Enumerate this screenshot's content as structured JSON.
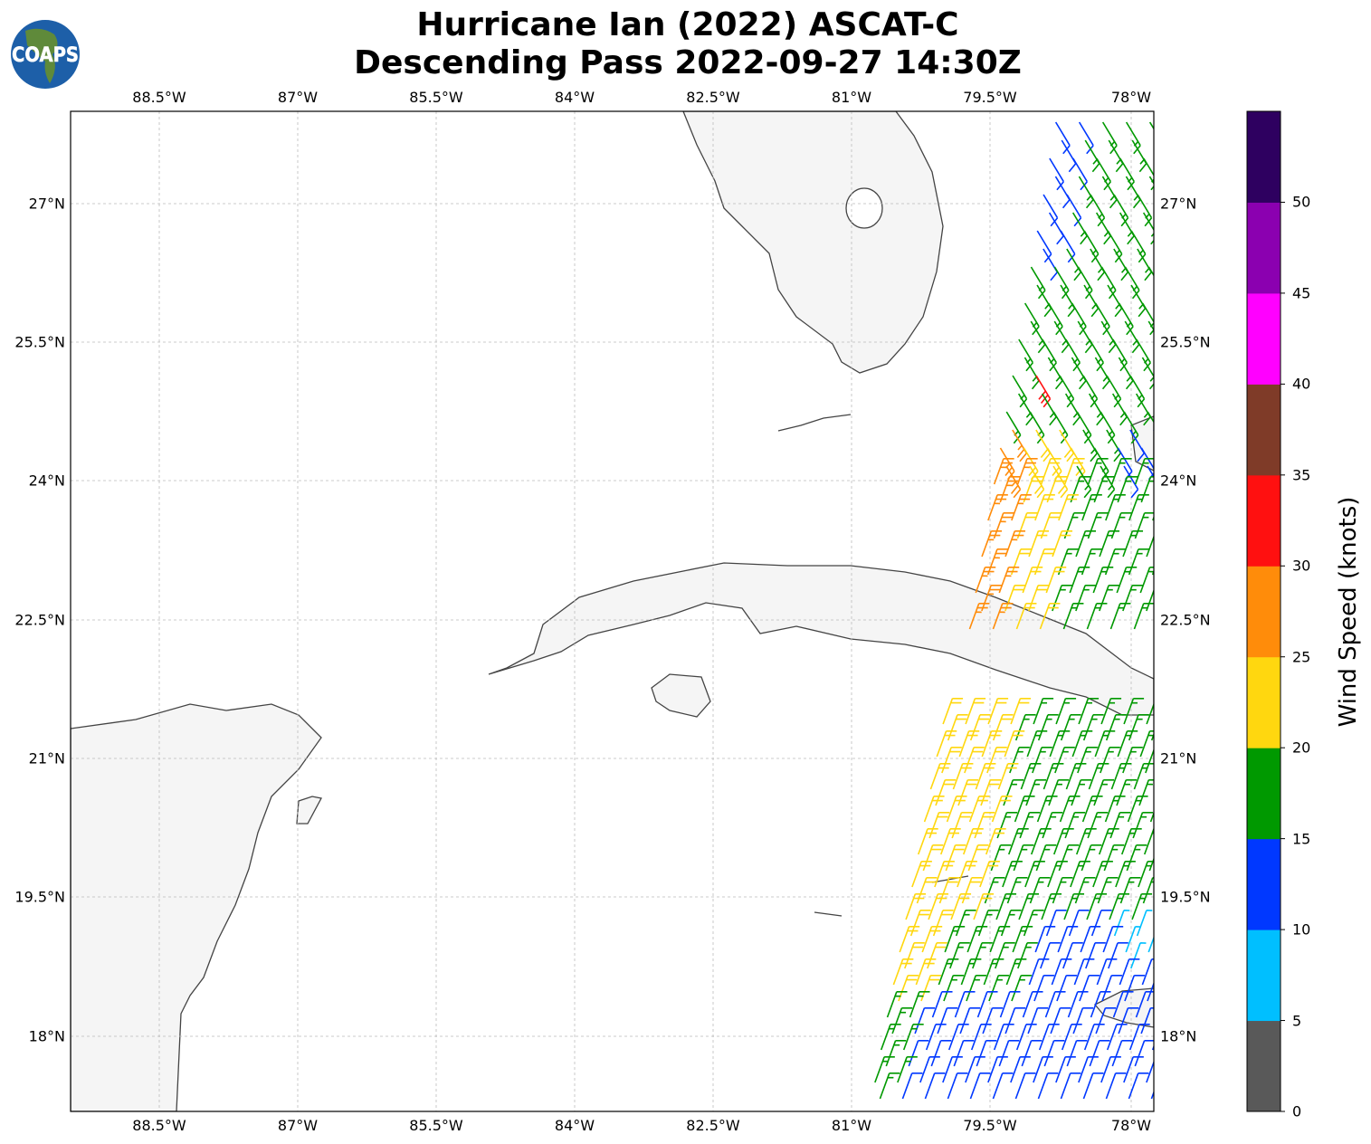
{
  "title": {
    "line1": "Hurricane Ian (2022) ASCAT-C",
    "line2": "Descending Pass 2022-09-27 14:30Z"
  },
  "logo": {
    "text": "COAPS"
  },
  "lon_ticks": [
    "88.5°W",
    "87°W",
    "85.5°W",
    "84°W",
    "82.5°W",
    "81°W",
    "79.5°W",
    "78°W"
  ],
  "lat_ticks": [
    "27°N",
    "25.5°N",
    "24°N",
    "22.5°N",
    "21°N",
    "19.5°N",
    "18°N"
  ],
  "colorbar": {
    "label": "Wind Speed (knots)",
    "ticks": [
      "0",
      "5",
      "10",
      "15",
      "20",
      "25",
      "30",
      "35",
      "40",
      "45",
      "50"
    ],
    "colors": [
      "#595959",
      "#00bfff",
      "#0038ff",
      "#009900",
      "#ffd70f",
      "#ff8c0a",
      "#ff1010",
      "#7f3b28",
      "#ff00ff",
      "#8b00b0",
      "#2e0060"
    ]
  },
  "map": {
    "extent_lon": [
      -89.46,
      -77.75
    ],
    "extent_lat": [
      17.19,
      28.0
    ],
    "land_color": "#f6f6f6",
    "coast_color": "#444444"
  }
}
